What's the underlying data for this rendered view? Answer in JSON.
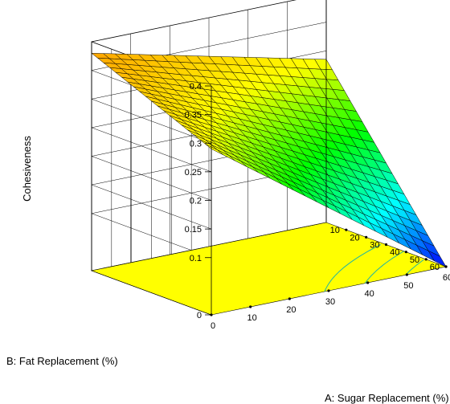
{
  "chart_data": {
    "type": "surface3d",
    "title": "",
    "zlabel": "Cohesiveness",
    "xlabel": "A: Sugar Replacement (%)",
    "ylabel": "B: Fat Replacement (%)",
    "x_ticks": [
      "0",
      "10",
      "20",
      "30",
      "40",
      "50",
      "60"
    ],
    "y_ticks": [
      "0",
      "10",
      "20",
      "30",
      "40",
      "50",
      "60"
    ],
    "z_ticks": [
      "0",
      "0.1",
      "0.15",
      "0.2",
      "0.25",
      "0.3",
      "0.35",
      "0.4"
    ],
    "xlim": [
      0,
      60
    ],
    "ylim": [
      0,
      60
    ],
    "zlim": [
      0,
      0.4
    ],
    "corner_values": [
      {
        "sugar": 0,
        "fat": 0,
        "cohesiveness": 0.38
      },
      {
        "sugar": 60,
        "fat": 0,
        "cohesiveness": 0.285
      },
      {
        "sugar": 0,
        "fat": 60,
        "cohesiveness": 0.29
      },
      {
        "sugar": 60,
        "fat": 60,
        "cohesiveness": 0.0
      }
    ],
    "grid": true,
    "colormap": [
      "#0000ff",
      "#00ffff",
      "#00ff00",
      "#ffff00",
      "#ffa500"
    ],
    "floor_color": "#ffff00",
    "contour_color": "#1fb5a5"
  }
}
